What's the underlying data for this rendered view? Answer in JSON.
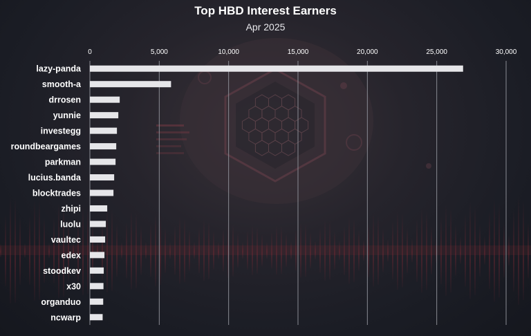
{
  "chart_data": {
    "type": "bar",
    "orientation": "horizontal",
    "title": "Top HBD Interest Earners",
    "subtitle": "Apr 2025",
    "categories": [
      "lazy-panda",
      "smooth-a",
      "drrosen",
      "yunnie",
      "investegg",
      "roundbeargames",
      "parkman",
      "lucius.banda",
      "blocktrades",
      "zhipi",
      "luolu",
      "vaultec",
      "edex",
      "stoodkev",
      "x30",
      "organduo",
      "ncwarp"
    ],
    "values": [
      26900,
      5850,
      2150,
      2050,
      1950,
      1900,
      1850,
      1750,
      1700,
      1250,
      1150,
      1100,
      1050,
      1000,
      980,
      960,
      920
    ],
    "xlim": [
      0,
      30000
    ],
    "xticks": [
      0,
      5000,
      10000,
      15000,
      20000,
      25000,
      30000
    ],
    "xtick_labels": [
      "0",
      "5,000",
      "10,000",
      "15,000",
      "20,000",
      "25,000",
      "30,000"
    ],
    "grid": "vertical",
    "legend": "none",
    "colors": {
      "bar": "#e6e6e9",
      "grid": "#8a8c94",
      "text": "#ffffff",
      "background": "#1b1d25"
    }
  }
}
